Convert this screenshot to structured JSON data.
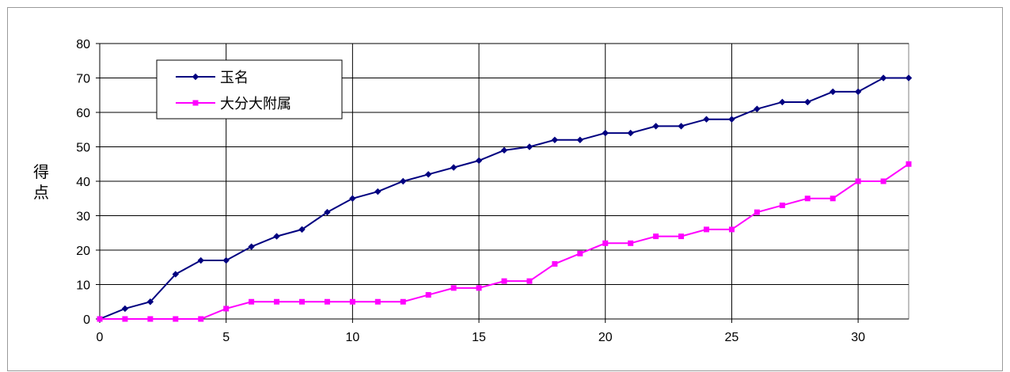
{
  "chart_data": {
    "type": "line",
    "title": "",
    "xlabel": "",
    "ylabel": "得点",
    "xlim": [
      0,
      32
    ],
    "ylim": [
      0,
      80
    ],
    "x_ticks": [
      0,
      5,
      10,
      15,
      20,
      25,
      30
    ],
    "y_ticks": [
      0,
      10,
      20,
      30,
      40,
      50,
      60,
      70,
      80
    ],
    "grid": true,
    "legend_position": "top-left",
    "x": [
      0,
      1,
      2,
      3,
      4,
      5,
      6,
      7,
      8,
      9,
      10,
      11,
      12,
      13,
      14,
      15,
      16,
      17,
      18,
      19,
      20,
      21,
      22,
      23,
      24,
      25,
      26,
      27,
      28,
      29,
      30,
      31,
      32
    ],
    "series": [
      {
        "name": "玉名",
        "color": "#000080",
        "marker": "diamond",
        "values": [
          0,
          3,
          5,
          13,
          17,
          17,
          21,
          24,
          26,
          31,
          35,
          37,
          40,
          42,
          44,
          46,
          49,
          50,
          52,
          52,
          54,
          54,
          56,
          56,
          58,
          58,
          61,
          63,
          63,
          66,
          66,
          70,
          70
        ]
      },
      {
        "name": "大分大附属",
        "color": "#ff00ff",
        "marker": "square",
        "values": [
          0,
          0,
          0,
          0,
          0,
          3,
          5,
          5,
          5,
          5,
          5,
          5,
          5,
          7,
          9,
          9,
          11,
          11,
          16,
          19,
          22,
          22,
          24,
          24,
          26,
          26,
          31,
          33,
          35,
          35,
          40,
          40,
          45
        ]
      }
    ]
  }
}
